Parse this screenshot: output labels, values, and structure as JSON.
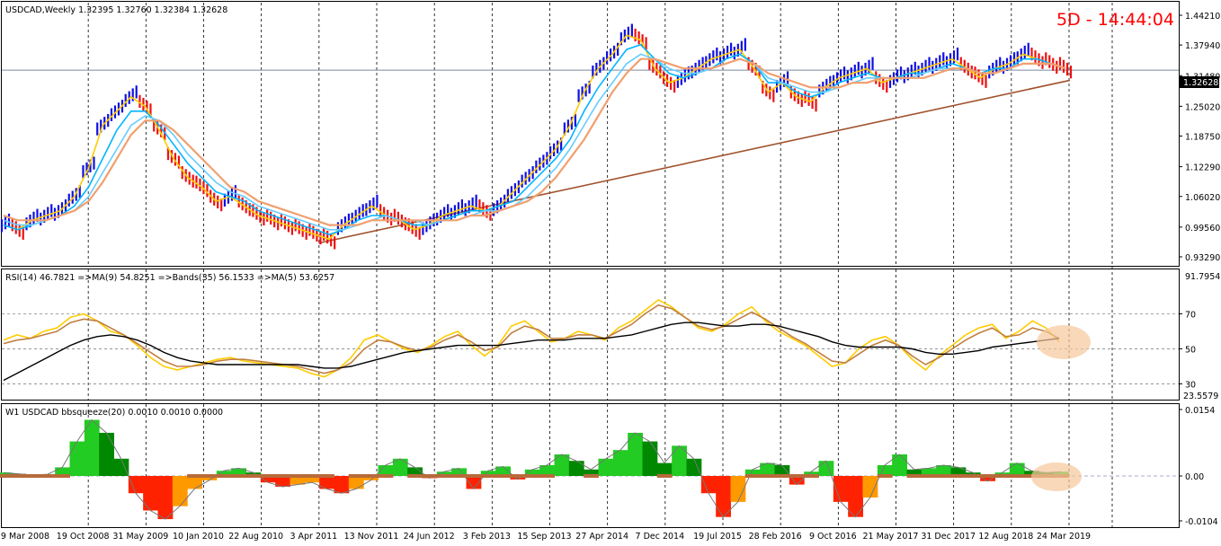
{
  "chart_data": [
    {
      "type": "line",
      "name": "main",
      "header": "USDCAD,Weekly  1.32395 1.32760 1.32384 1.32628",
      "countdown": "5D - 14:44:04",
      "price_tag": "1.32628",
      "price_now": 1.32628,
      "yticks": [
        "1.44210",
        "1.37940",
        "1.31480",
        "1.25020",
        "1.18750",
        "1.12290",
        "1.06020",
        "0.99560",
        "0.93290"
      ],
      "ylim": [
        0.9329,
        1.4421
      ],
      "xticks": [
        "9 Mar 2008",
        "19 Oct 2008",
        "31 May 2009",
        "10 Jan 2010",
        "22 Aug 2010",
        "3 Apr 2011",
        "13 Nov 2011",
        "24 Jun 2012",
        "3 Feb 2013",
        "15 Sep 2013",
        "27 Apr 2014",
        "7 Dec 2014",
        "19 Jul 2015",
        "28 Feb 2016",
        "9 Oct 2016",
        "21 May 2017",
        "31 Dec 2017",
        "12 Aug 2018",
        "24 Mar 2019"
      ],
      "series": [
        {
          "values": [
            1.0,
            0.99,
            1.01,
            1.02,
            1.03,
            1.06,
            1.12,
            1.21,
            1.24,
            1.27,
            1.25,
            1.2,
            1.14,
            1.1,
            1.08,
            1.05,
            1.06,
            1.04,
            1.02,
            1.01,
            1.0,
            0.99,
            0.98,
            0.97,
            1.0,
            1.02,
            1.04,
            1.02,
            1.01,
            0.99,
            1.0,
            1.02,
            1.03,
            1.04,
            1.03,
            1.04,
            1.07,
            1.1,
            1.13,
            1.16,
            1.21,
            1.28,
            1.33,
            1.36,
            1.4,
            1.39,
            1.33,
            1.3,
            1.31,
            1.33,
            1.35,
            1.36,
            1.37,
            1.33,
            1.28,
            1.3,
            1.27,
            1.26,
            1.29,
            1.31,
            1.32,
            1.33,
            1.3,
            1.31,
            1.32,
            1.33,
            1.34,
            1.35,
            1.33,
            1.31,
            1.33,
            1.34,
            1.36,
            1.35,
            1.34,
            1.33
          ]
        },
        {
          "values": [
            1.0,
            0.99,
            1.0,
            1.01,
            1.02,
            1.04,
            1.08,
            1.14,
            1.2,
            1.24,
            1.24,
            1.21,
            1.17,
            1.13,
            1.1,
            1.07,
            1.06,
            1.05,
            1.03,
            1.02,
            1.01,
            1.0,
            0.99,
            0.98,
            0.99,
            1.01,
            1.02,
            1.02,
            1.01,
            1.0,
            1.0,
            1.01,
            1.02,
            1.03,
            1.03,
            1.04,
            1.05,
            1.08,
            1.11,
            1.14,
            1.18,
            1.24,
            1.29,
            1.33,
            1.37,
            1.38,
            1.35,
            1.32,
            1.31,
            1.32,
            1.33,
            1.35,
            1.36,
            1.34,
            1.3,
            1.3,
            1.28,
            1.27,
            1.28,
            1.3,
            1.31,
            1.32,
            1.31,
            1.31,
            1.32,
            1.32,
            1.33,
            1.34,
            1.33,
            1.32,
            1.33,
            1.33,
            1.35,
            1.35,
            1.34,
            1.33
          ]
        },
        {
          "values": [
            1.01,
            1.0,
            1.0,
            1.01,
            1.02,
            1.03,
            1.06,
            1.11,
            1.16,
            1.21,
            1.23,
            1.22,
            1.19,
            1.15,
            1.12,
            1.09,
            1.07,
            1.06,
            1.04,
            1.03,
            1.02,
            1.01,
            1.0,
            0.99,
            0.99,
            1.0,
            1.01,
            1.02,
            1.01,
            1.01,
            1.0,
            1.01,
            1.01,
            1.02,
            1.03,
            1.03,
            1.04,
            1.06,
            1.09,
            1.12,
            1.16,
            1.21,
            1.26,
            1.3,
            1.34,
            1.36,
            1.35,
            1.33,
            1.32,
            1.32,
            1.33,
            1.34,
            1.35,
            1.34,
            1.31,
            1.3,
            1.29,
            1.28,
            1.28,
            1.29,
            1.3,
            1.31,
            1.31,
            1.31,
            1.31,
            1.32,
            1.33,
            1.33,
            1.33,
            1.32,
            1.32,
            1.33,
            1.34,
            1.34,
            1.34,
            1.33
          ]
        },
        {
          "values": [
            1.02,
            1.01,
            1.01,
            1.01,
            1.02,
            1.03,
            1.05,
            1.09,
            1.14,
            1.19,
            1.22,
            1.22,
            1.2,
            1.17,
            1.14,
            1.11,
            1.08,
            1.07,
            1.05,
            1.04,
            1.03,
            1.02,
            1.01,
            1.0,
            1.0,
            1.0,
            1.01,
            1.01,
            1.01,
            1.01,
            1.01,
            1.01,
            1.01,
            1.02,
            1.02,
            1.03,
            1.04,
            1.05,
            1.07,
            1.1,
            1.14,
            1.18,
            1.23,
            1.28,
            1.32,
            1.35,
            1.35,
            1.34,
            1.33,
            1.33,
            1.33,
            1.34,
            1.35,
            1.34,
            1.32,
            1.31,
            1.3,
            1.29,
            1.29,
            1.29,
            1.3,
            1.3,
            1.31,
            1.31,
            1.31,
            1.31,
            1.32,
            1.33,
            1.33,
            1.32,
            1.32,
            1.33,
            1.34,
            1.34,
            1.34,
            1.33
          ]
        }
      ],
      "trendline": {
        "x": [
          0.2,
          71.0
        ],
        "y": [
          0.965,
          1.305
        ]
      }
    },
    {
      "type": "line",
      "name": "rsi",
      "header": "RSI(14) 46.7821  =>MA(9) 54.8251  =>Bands(35) 56.1533  =>MA(5) 53.6257",
      "yticks_upper": "91.7954",
      "yticks": [
        "70",
        "50",
        "30"
      ],
      "ytick_lower": "23.5579",
      "ylim": [
        23.5579,
        91.7954
      ],
      "levels": [
        70,
        50,
        30
      ],
      "series": [
        {
          "values": [
            55,
            58,
            56,
            60,
            62,
            68,
            70,
            66,
            60,
            58,
            52,
            45,
            40,
            38,
            40,
            42,
            44,
            45,
            43,
            42,
            41,
            40,
            39,
            36,
            34,
            38,
            45,
            55,
            58,
            54,
            50,
            48,
            52,
            57,
            60,
            52,
            46,
            52,
            63,
            66,
            60,
            54,
            56,
            60,
            58,
            55,
            62,
            66,
            72,
            78,
            74,
            68,
            62,
            60,
            64,
            70,
            74,
            66,
            60,
            56,
            52,
            46,
            40,
            42,
            50,
            55,
            57,
            52,
            44,
            38,
            46,
            52,
            58,
            62,
            64,
            56,
            60,
            66,
            62,
            54
          ]
        },
        {
          "values": [
            53,
            55,
            56,
            58,
            60,
            65,
            67,
            66,
            62,
            58,
            53,
            48,
            43,
            40,
            40,
            41,
            43,
            44,
            44,
            43,
            42,
            41,
            40,
            38,
            36,
            38,
            42,
            50,
            55,
            54,
            51,
            49,
            51,
            55,
            58,
            54,
            49,
            51,
            59,
            63,
            61,
            56,
            56,
            58,
            58,
            56,
            60,
            64,
            70,
            75,
            73,
            68,
            63,
            61,
            63,
            67,
            71,
            67,
            62,
            57,
            53,
            48,
            43,
            42,
            47,
            52,
            55,
            52,
            46,
            41,
            45,
            50,
            55,
            59,
            62,
            57,
            58,
            62,
            60,
            56
          ]
        },
        {
          "values": [
            32,
            36,
            40,
            44,
            48,
            52,
            55,
            57,
            58,
            57,
            55,
            52,
            48,
            45,
            43,
            42,
            41,
            41,
            41,
            41,
            41,
            41,
            41,
            40,
            39,
            39,
            40,
            42,
            44,
            46,
            48,
            49,
            50,
            51,
            52,
            52,
            52,
            52,
            53,
            54,
            55,
            55,
            55,
            56,
            56,
            56,
            57,
            58,
            60,
            62,
            64,
            65,
            65,
            64,
            63,
            63,
            64,
            64,
            63,
            61,
            59,
            57,
            54,
            52,
            51,
            51,
            51,
            51,
            50,
            48,
            47,
            47,
            48,
            49,
            51,
            52,
            53,
            54,
            55,
            56
          ]
        }
      ]
    },
    {
      "type": "bar",
      "name": "bbsqueeze",
      "header": "W1 USDCAD bbsqueeze(20) 0.0010 0.0010 0.0000",
      "yticks": [
        "0.0154",
        "0.00",
        "-0.0104"
      ],
      "ylim": [
        -0.0104,
        0.0154
      ],
      "values": [
        0.0008,
        0.0005,
        0.0002,
        0.0004,
        0.002,
        0.008,
        0.013,
        0.01,
        0.004,
        -0.004,
        -0.008,
        -0.01,
        -0.007,
        -0.003,
        -0.001,
        0.0012,
        0.0018,
        0.0008,
        -0.0015,
        -0.0025,
        -0.002,
        -0.0015,
        -0.003,
        -0.004,
        -0.003,
        -0.001,
        0.0025,
        0.004,
        0.002,
        -0.0005,
        0.001,
        0.0018,
        -0.003,
        0.0012,
        0.0022,
        -0.0008,
        0.0015,
        0.0025,
        0.005,
        0.0035,
        0.0015,
        0.004,
        0.006,
        0.01,
        0.008,
        0.003,
        0.007,
        0.004,
        -0.004,
        -0.0095,
        -0.006,
        0.0015,
        0.003,
        0.0025,
        -0.002,
        0.001,
        0.0035,
        -0.006,
        -0.0095,
        -0.005,
        0.0025,
        0.005,
        0.0015,
        0.0018,
        0.0025,
        0.002,
        0.0008,
        -0.0012,
        0.0008,
        0.003,
        0.0012,
        0.0008,
        0.001
      ]
    }
  ]
}
